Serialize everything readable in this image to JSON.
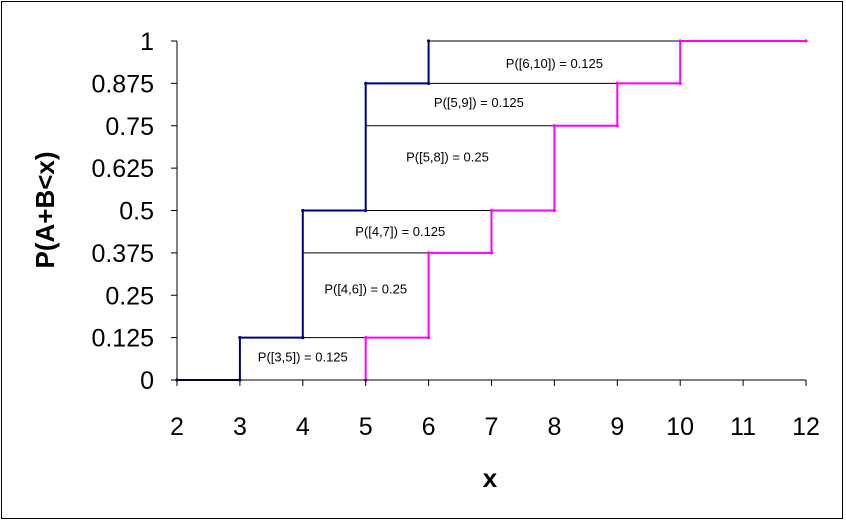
{
  "chart_data": {
    "type": "line",
    "title": "",
    "xlabel": "x",
    "ylabel": "P(A+B<x)",
    "xlim": [
      2,
      12
    ],
    "ylim": [
      0,
      1
    ],
    "x_ticks": [
      "2",
      "3",
      "4",
      "5",
      "6",
      "7",
      "8",
      "9",
      "10",
      "11",
      "12"
    ],
    "y_ticks": [
      "0",
      "0.125",
      "0.25",
      "0.375",
      "0.5",
      "0.625",
      "0.75",
      "0.875",
      "1"
    ],
    "grid": false,
    "legend": "none",
    "series": [
      {
        "color": "#000080",
        "x": [
          2,
          3,
          3,
          4,
          4,
          5,
          5,
          6,
          6
        ],
        "y": [
          0,
          0,
          0.125,
          0.125,
          0.5,
          0.5,
          0.875,
          0.875,
          1
        ]
      },
      {
        "color": "#FF00FF",
        "x": [
          5,
          5,
          6,
          6,
          7,
          7,
          8,
          8,
          9,
          9,
          10,
          10,
          12
        ],
        "y": [
          0,
          0.125,
          0.125,
          0.375,
          0.375,
          0.5,
          0.5,
          0.75,
          0.75,
          0.875,
          0.875,
          1,
          1
        ]
      }
    ],
    "segments": [
      {
        "x1": 3,
        "x2": 5,
        "y": 0.125
      },
      {
        "x1": 4,
        "x2": 7,
        "y": 0.375
      },
      {
        "x1": 4,
        "x2": 7,
        "y": 0.5
      },
      {
        "x1": 5,
        "x2": 8,
        "y": 0.75
      },
      {
        "x1": 5,
        "x2": 9,
        "y": 0.875
      },
      {
        "x1": 6,
        "x2": 10,
        "y": 1
      }
    ],
    "annotations": [
      {
        "text": "P([3,5]) = 0.125",
        "x": 4.0,
        "y": 0.07
      },
      {
        "text": "P([4,6]) = 0.25",
        "x": 5.0,
        "y": 0.27
      },
      {
        "text": "P([4,7]) = 0.125",
        "x": 5.55,
        "y": 0.44
      },
      {
        "text": "P([5,8]) = 0.25",
        "x": 6.3,
        "y": 0.66
      },
      {
        "text": "P([5,9]) = 0.125",
        "x": 6.8,
        "y": 0.82
      },
      {
        "text": "P([6,10]) = 0.125",
        "x": 8.0,
        "y": 0.935
      }
    ]
  }
}
